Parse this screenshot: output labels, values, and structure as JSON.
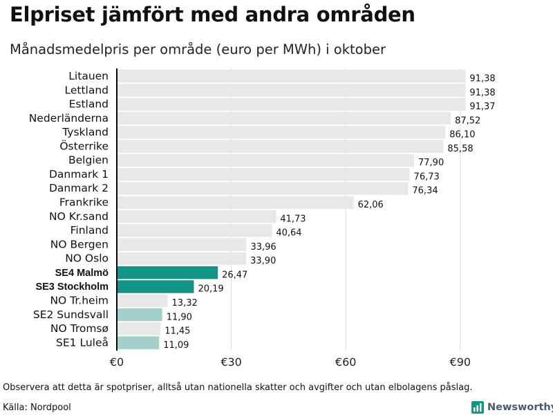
{
  "title": "Elpriset jämfört med andra områden",
  "subtitle": "Månadsmedelpris per område (euro per MWh) i oktober",
  "footnote": "Observera att detta är spotpriser, alltså utan nationella skatter och avgifter och utan elbolagens påslag.",
  "source": "Källa: Nordpool",
  "brand": {
    "name": "Newsworthy",
    "icon": "newsworthy-logo-icon"
  },
  "colors": {
    "default": "#e8e8e8",
    "highlight": "#149485",
    "accent_light": "#a3d0ca",
    "axis": "#000000"
  },
  "chart_data": {
    "type": "bar",
    "orientation": "horizontal",
    "title": "Elpriset jämfört med andra områden",
    "subtitle": "Månadsmedelpris per område (euro per MWh) i oktober",
    "xlabel": "",
    "ylabel": "",
    "xlim": [
      0,
      92
    ],
    "xticks": [
      0,
      30,
      60,
      90
    ],
    "xtick_labels": [
      "€0",
      "€30",
      "€60",
      "€90"
    ],
    "categories": [
      "Litauen",
      "Lettland",
      "Estland",
      "Nederländerna",
      "Tyskland",
      "Österrike",
      "Belgien",
      "Danmark  1",
      "Danmark  2",
      "Frankrike",
      "NO Kr.sand",
      "Finland",
      "NO Bergen",
      "NO Oslo",
      "SE4 Malmö",
      "SE3 Stockholm",
      "NO Tr.heim",
      "SE2  Sundsvall",
      "NO Tromsø",
      "SE1  Luleå"
    ],
    "values": [
      91.38,
      91.38,
      91.37,
      87.52,
      86.1,
      85.58,
      77.9,
      76.73,
      76.34,
      62.06,
      41.73,
      40.64,
      33.96,
      33.9,
      26.47,
      20.19,
      13.32,
      11.9,
      11.45,
      11.09
    ],
    "value_labels": [
      "91,38",
      "91,38",
      "91,37",
      "87,52",
      "86,10",
      "85,58",
      "77,90",
      "76,73",
      "76,34",
      "62,06",
      "41,73",
      "40,64",
      "33,96",
      "33,90",
      "26,47",
      "20,19",
      "13,32",
      "11,90",
      "11,45",
      "11,09"
    ],
    "bar_styles": [
      "default",
      "default",
      "default",
      "default",
      "default",
      "default",
      "default",
      "default",
      "default",
      "default",
      "default",
      "default",
      "default",
      "default",
      "highlight",
      "highlight",
      "default",
      "accent_light",
      "default",
      "accent_light"
    ],
    "bold_labels": [
      false,
      false,
      false,
      false,
      false,
      false,
      false,
      false,
      false,
      false,
      false,
      false,
      false,
      false,
      true,
      true,
      false,
      false,
      false,
      false
    ]
  }
}
